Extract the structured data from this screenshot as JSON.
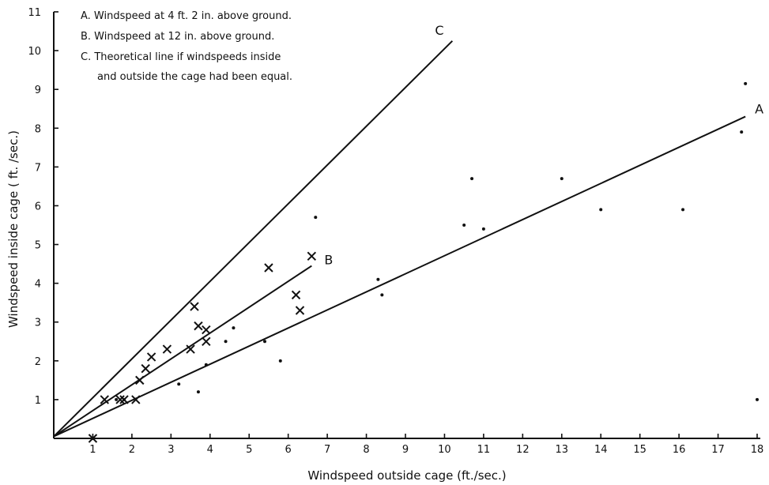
{
  "chart_data": {
    "type": "scatter",
    "xlabel": "Windspeed outside cage (ft./sec.)",
    "ylabel": "Windspeed inside cage ( ft. /sec.)",
    "xlim": [
      0,
      18
    ],
    "ylim": [
      0,
      11
    ],
    "x_ticks": [
      "1",
      "2",
      "3",
      "4",
      "5",
      "6",
      "7",
      "8",
      "9",
      "10",
      "11",
      "12",
      "13",
      "14",
      "15",
      "16",
      "17",
      "18"
    ],
    "y_ticks": [
      "1",
      "2",
      "3",
      "4",
      "5",
      "6",
      "7",
      "8",
      "9",
      "10",
      "11"
    ],
    "grid": false,
    "legend_position": "top-left",
    "legend": [
      "A.  Windspeed at 4 ft. 2 in. above ground.",
      "B.  Windspeed at 12 in. above ground.",
      "C.  Theoretical line if windspeeds inside",
      "and outside the cage had been equal."
    ],
    "series": [
      {
        "name": "A",
        "marker": "dot",
        "points": [
          [
            1.0,
            0.0
          ],
          [
            1.6,
            1.0
          ],
          [
            1.8,
            1.0
          ],
          [
            3.2,
            1.4
          ],
          [
            3.7,
            1.2
          ],
          [
            3.9,
            1.9
          ],
          [
            4.4,
            2.5
          ],
          [
            4.6,
            2.85
          ],
          [
            5.4,
            2.5
          ],
          [
            5.8,
            2.0
          ],
          [
            6.7,
            5.7
          ],
          [
            8.3,
            4.1
          ],
          [
            8.4,
            3.7
          ],
          [
            10.5,
            5.5
          ],
          [
            10.7,
            6.7
          ],
          [
            11.0,
            5.4
          ],
          [
            13.0,
            6.7
          ],
          [
            14.0,
            5.9
          ],
          [
            16.1,
            5.9
          ],
          [
            17.6,
            7.9
          ],
          [
            17.7,
            9.15
          ],
          [
            18.0,
            1.0
          ]
        ]
      },
      {
        "name": "B",
        "marker": "x",
        "points": [
          [
            1.0,
            0.0
          ],
          [
            1.3,
            1.0
          ],
          [
            1.7,
            1.0
          ],
          [
            1.8,
            1.0
          ],
          [
            2.1,
            1.0
          ],
          [
            2.2,
            1.5
          ],
          [
            2.35,
            1.8
          ],
          [
            2.5,
            2.1
          ],
          [
            2.9,
            2.3
          ],
          [
            3.5,
            2.3
          ],
          [
            3.6,
            3.4
          ],
          [
            3.7,
            2.9
          ],
          [
            3.9,
            2.8
          ],
          [
            3.9,
            2.5
          ],
          [
            5.5,
            4.4
          ],
          [
            6.2,
            3.7
          ],
          [
            6.3,
            3.3
          ],
          [
            6.6,
            4.7
          ]
        ]
      }
    ],
    "lines": [
      {
        "label": "A",
        "from": [
          0,
          0.05
        ],
        "to": [
          17.7,
          8.3
        ]
      },
      {
        "label": "B",
        "from": [
          0,
          0.05
        ],
        "to": [
          6.6,
          4.45
        ]
      },
      {
        "label": "C",
        "from": [
          0,
          0.05
        ],
        "to": [
          10.2,
          10.25
        ]
      }
    ]
  }
}
